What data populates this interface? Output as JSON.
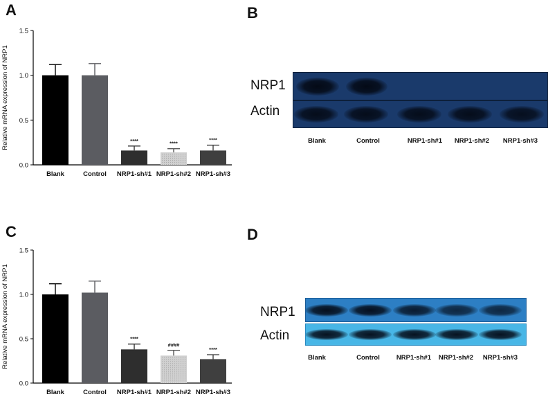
{
  "panels": {
    "a": {
      "letter": "A"
    },
    "b": {
      "letter": "B"
    },
    "c": {
      "letter": "C"
    },
    "d": {
      "letter": "D"
    }
  },
  "chart_data": [
    {
      "panel": "A",
      "type": "bar",
      "categories": [
        "Blank",
        "Control",
        "NRP1-sh#1",
        "NRP1-sh#2",
        "NRP1-sh#3"
      ],
      "values": [
        1.0,
        1.0,
        0.16,
        0.14,
        0.16
      ],
      "errors": [
        0.12,
        0.13,
        0.05,
        0.04,
        0.06
      ],
      "annotations": [
        "",
        "",
        "****",
        "****",
        "****"
      ],
      "bar_colors": [
        "#000000",
        "#5b5c61",
        "#2e2e2e",
        "#d0d0d0",
        "#3f3f3f"
      ],
      "ylabel": "Relative mRNA expression of NRP1",
      "xlabel": "",
      "ylim": [
        0,
        1.5
      ],
      "yticks": [
        "0.0",
        "0.5",
        "1.0",
        "1.5"
      ]
    },
    {
      "panel": "C",
      "type": "bar",
      "categories": [
        "Blank",
        "Control",
        "NRP1-sh#1",
        "NRP1-sh#2",
        "NRP1-sh#3"
      ],
      "values": [
        1.0,
        1.02,
        0.38,
        0.31,
        0.27
      ],
      "errors": [
        0.12,
        0.13,
        0.06,
        0.06,
        0.05
      ],
      "annotations": [
        "",
        "",
        "****",
        "####",
        "****"
      ],
      "bar_colors": [
        "#000000",
        "#5b5c61",
        "#2e2e2e",
        "#d0d0d0",
        "#3f3f3f"
      ],
      "ylabel": "Relative mRNA expression of NRP1",
      "xlabel": "",
      "ylim": [
        0,
        1.5
      ],
      "yticks": [
        "0.0",
        "0.5",
        "1.0",
        "1.5"
      ]
    }
  ],
  "blots": {
    "b": {
      "rows": [
        "NRP1",
        "Actin"
      ],
      "lanes": [
        "Blank",
        "Control",
        "NRP1-sh#1",
        "NRP1-sh#2",
        "NRP1-sh#3"
      ],
      "background": "#1a3a6b",
      "band_color": "#06101f"
    },
    "d": {
      "rows": [
        "NRP1",
        "Actin"
      ],
      "lanes": [
        "Blank",
        "Control",
        "NRP1-sh#1",
        "NRP1-sh#2",
        "NRP1-sh#3"
      ],
      "nrp1_background": "#2d7fc4",
      "actin_background": "#48b6e6",
      "band_color": "#071a35"
    }
  }
}
